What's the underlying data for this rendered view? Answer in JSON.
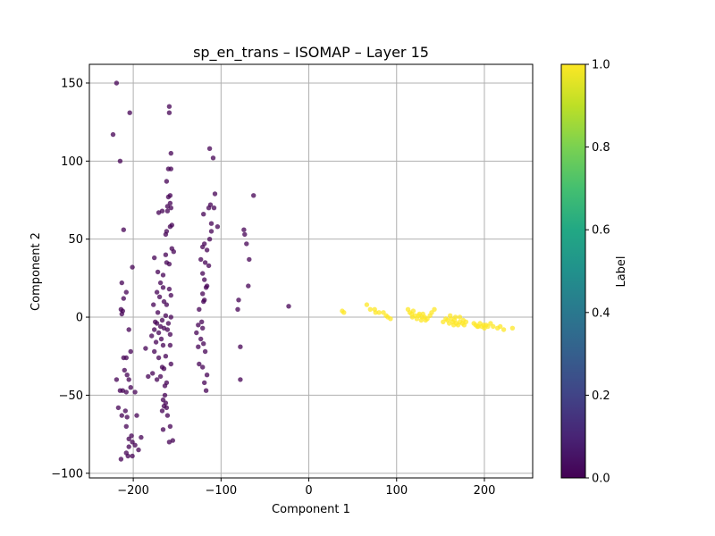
{
  "chart_data": {
    "type": "scatter",
    "title": "sp_en_trans – ISOMAP – Layer 15",
    "xlabel": "Component 1",
    "ylabel": "Component 2",
    "xlim": [
      -250,
      255
    ],
    "ylim": [
      -103,
      162
    ],
    "xticks": [
      -200,
      -100,
      0,
      100,
      200
    ],
    "yticks": [
      -100,
      -50,
      0,
      50,
      100,
      150
    ],
    "grid": true,
    "colorbar": {
      "label": "Label",
      "range": [
        0,
        1
      ],
      "ticks": [
        "0.0",
        "0.2",
        "0.4",
        "0.6",
        "0.8",
        "1.0"
      ]
    },
    "colors": {
      "label_0": "#440154",
      "label_1": "#fde725"
    },
    "series": [
      {
        "label_value": 0,
        "points": [
          [
            -219,
            150
          ],
          [
            -223,
            117
          ],
          [
            -204,
            131
          ],
          [
            -215,
            100
          ],
          [
            -211,
            56
          ],
          [
            -213,
            22
          ],
          [
            -211,
            12
          ],
          [
            -208,
            16
          ],
          [
            -214,
            5
          ],
          [
            -212,
            4
          ],
          [
            -213,
            2
          ],
          [
            -201,
            32
          ],
          [
            -205,
            -8
          ],
          [
            -203,
            -22
          ],
          [
            -211,
            -26
          ],
          [
            -208,
            -26
          ],
          [
            -210,
            -34
          ],
          [
            -207,
            -37
          ],
          [
            -205,
            -40
          ],
          [
            -219,
            -40
          ],
          [
            -203,
            -45
          ],
          [
            -212,
            -47
          ],
          [
            -215,
            -47
          ],
          [
            -208,
            -48
          ],
          [
            -198,
            -48
          ],
          [
            -217,
            -58
          ],
          [
            -209,
            -60
          ],
          [
            -213,
            -63
          ],
          [
            -207,
            -64
          ],
          [
            -196,
            -63
          ],
          [
            -208,
            -70
          ],
          [
            -202,
            -76
          ],
          [
            -205,
            -78
          ],
          [
            -201,
            -80
          ],
          [
            -198,
            -82
          ],
          [
            -191,
            -77
          ],
          [
            -205,
            -83
          ],
          [
            -194,
            -85
          ],
          [
            -208,
            -87
          ],
          [
            -206,
            -89
          ],
          [
            -201,
            -89
          ],
          [
            -214,
            -91
          ],
          [
            -159,
            135
          ],
          [
            -159,
            131
          ],
          [
            -157,
            105
          ],
          [
            -160,
            95
          ],
          [
            -157,
            95
          ],
          [
            -162,
            87
          ],
          [
            -158,
            78
          ],
          [
            -160,
            77
          ],
          [
            -158,
            73
          ],
          [
            -161,
            71
          ],
          [
            -157,
            70
          ],
          [
            -161,
            68
          ],
          [
            -171,
            67
          ],
          [
            -167,
            68
          ],
          [
            -156,
            59
          ],
          [
            -158,
            58
          ],
          [
            -162,
            55
          ],
          [
            -163,
            53
          ],
          [
            -156,
            44
          ],
          [
            -154,
            42
          ],
          [
            -163,
            40
          ],
          [
            -162,
            35
          ],
          [
            -159,
            34
          ],
          [
            -176,
            38
          ],
          [
            -172,
            29
          ],
          [
            -166,
            27
          ],
          [
            -169,
            22
          ],
          [
            -166,
            19
          ],
          [
            -173,
            16
          ],
          [
            -159,
            18
          ],
          [
            -157,
            14
          ],
          [
            -170,
            13
          ],
          [
            -165,
            10
          ],
          [
            -162,
            8
          ],
          [
            -177,
            8
          ],
          [
            -172,
            3
          ],
          [
            -157,
            0
          ],
          [
            -163,
            1
          ],
          [
            -167,
            -2
          ],
          [
            -173,
            -4
          ],
          [
            -175,
            -3
          ],
          [
            -160,
            -4
          ],
          [
            -169,
            -6
          ],
          [
            -165,
            -7
          ],
          [
            -176,
            -8
          ],
          [
            -161,
            -8
          ],
          [
            -179,
            -12
          ],
          [
            -171,
            -10
          ],
          [
            -158,
            -11
          ],
          [
            -168,
            -14
          ],
          [
            -174,
            -16
          ],
          [
            -166,
            -18
          ],
          [
            -158,
            -18
          ],
          [
            -186,
            -20
          ],
          [
            -176,
            -22
          ],
          [
            -171,
            -26
          ],
          [
            -163,
            -25
          ],
          [
            -157,
            -30
          ],
          [
            -167,
            -32
          ],
          [
            -165,
            -33
          ],
          [
            -178,
            -36
          ],
          [
            -169,
            -38
          ],
          [
            -162,
            -42
          ],
          [
            -164,
            -44
          ],
          [
            -183,
            -38
          ],
          [
            -173,
            -40
          ],
          [
            -164,
            -50
          ],
          [
            -166,
            -53
          ],
          [
            -163,
            -55
          ],
          [
            -165,
            -57
          ],
          [
            -162,
            -58
          ],
          [
            -167,
            -60
          ],
          [
            -161,
            -63
          ],
          [
            -158,
            -70
          ],
          [
            -166,
            -72
          ],
          [
            -155,
            -79
          ],
          [
            -159,
            -80
          ],
          [
            -113,
            108
          ],
          [
            -109,
            102
          ],
          [
            -107,
            79
          ],
          [
            -112,
            72
          ],
          [
            -114,
            70
          ],
          [
            -108,
            70
          ],
          [
            -120,
            66
          ],
          [
            -111,
            60
          ],
          [
            -104,
            58
          ],
          [
            -111,
            55
          ],
          [
            -113,
            50
          ],
          [
            -119,
            47
          ],
          [
            -121,
            45
          ],
          [
            -116,
            43
          ],
          [
            -123,
            37
          ],
          [
            -118,
            35
          ],
          [
            -114,
            33
          ],
          [
            -121,
            28
          ],
          [
            -119,
            24
          ],
          [
            -116,
            20
          ],
          [
            -117,
            19
          ],
          [
            -121,
            15
          ],
          [
            -119,
            11
          ],
          [
            -120,
            10
          ],
          [
            -125,
            5
          ],
          [
            -122,
            -3
          ],
          [
            -126,
            -5
          ],
          [
            -121,
            -7
          ],
          [
            -128,
            -10
          ],
          [
            -123,
            -14
          ],
          [
            -120,
            -17
          ],
          [
            -126,
            -19
          ],
          [
            -118,
            -22
          ],
          [
            -125,
            -30
          ],
          [
            -121,
            -32
          ],
          [
            -116,
            -37
          ],
          [
            -119,
            -42
          ],
          [
            -117,
            -47
          ],
          [
            -74,
            56
          ],
          [
            -73,
            53
          ],
          [
            -71,
            47
          ],
          [
            -68,
            37
          ],
          [
            -69,
            20
          ],
          [
            -63,
            78
          ],
          [
            -80,
            11
          ],
          [
            -81,
            5
          ],
          [
            -78,
            -19
          ],
          [
            -78,
            -40
          ],
          [
            -23,
            7
          ]
        ]
      },
      {
        "label_value": 1,
        "points": [
          [
            38,
            4
          ],
          [
            40,
            3
          ],
          [
            66,
            8
          ],
          [
            70,
            5
          ],
          [
            75,
            5
          ],
          [
            76,
            3
          ],
          [
            80,
            3
          ],
          [
            85,
            3
          ],
          [
            88,
            1
          ],
          [
            90,
            0
          ],
          [
            93,
            -1
          ],
          [
            113,
            5
          ],
          [
            115,
            3
          ],
          [
            117,
            2
          ],
          [
            119,
            4
          ],
          [
            121,
            1
          ],
          [
            118,
            0
          ],
          [
            123,
            -1
          ],
          [
            126,
            2
          ],
          [
            128,
            -2
          ],
          [
            130,
            2
          ],
          [
            132,
            0
          ],
          [
            135,
            -1
          ],
          [
            138,
            1
          ],
          [
            143,
            5
          ],
          [
            140,
            3
          ],
          [
            125,
            1
          ],
          [
            129,
            0
          ],
          [
            133,
            -2
          ],
          [
            153,
            -3
          ],
          [
            156,
            -1
          ],
          [
            158,
            -2
          ],
          [
            160,
            -4
          ],
          [
            162,
            -1
          ],
          [
            164,
            -3
          ],
          [
            166,
            -2
          ],
          [
            168,
            -4
          ],
          [
            170,
            -5
          ],
          [
            172,
            -3
          ],
          [
            175,
            -4
          ],
          [
            177,
            -5
          ],
          [
            179,
            -3
          ],
          [
            165,
            -5
          ],
          [
            167,
            0
          ],
          [
            161,
            1
          ],
          [
            172,
            0
          ],
          [
            176,
            -2
          ],
          [
            188,
            -4
          ],
          [
            190,
            -5
          ],
          [
            192,
            -6
          ],
          [
            195,
            -4
          ],
          [
            197,
            -6
          ],
          [
            199,
            -5
          ],
          [
            202,
            -5
          ],
          [
            204,
            -6
          ],
          [
            207,
            -4
          ],
          [
            210,
            -6
          ],
          [
            215,
            -7
          ],
          [
            218,
            -6
          ],
          [
            222,
            -8
          ],
          [
            232,
            -7
          ],
          [
            193,
            -6
          ],
          [
            200,
            -7
          ]
        ]
      }
    ]
  }
}
